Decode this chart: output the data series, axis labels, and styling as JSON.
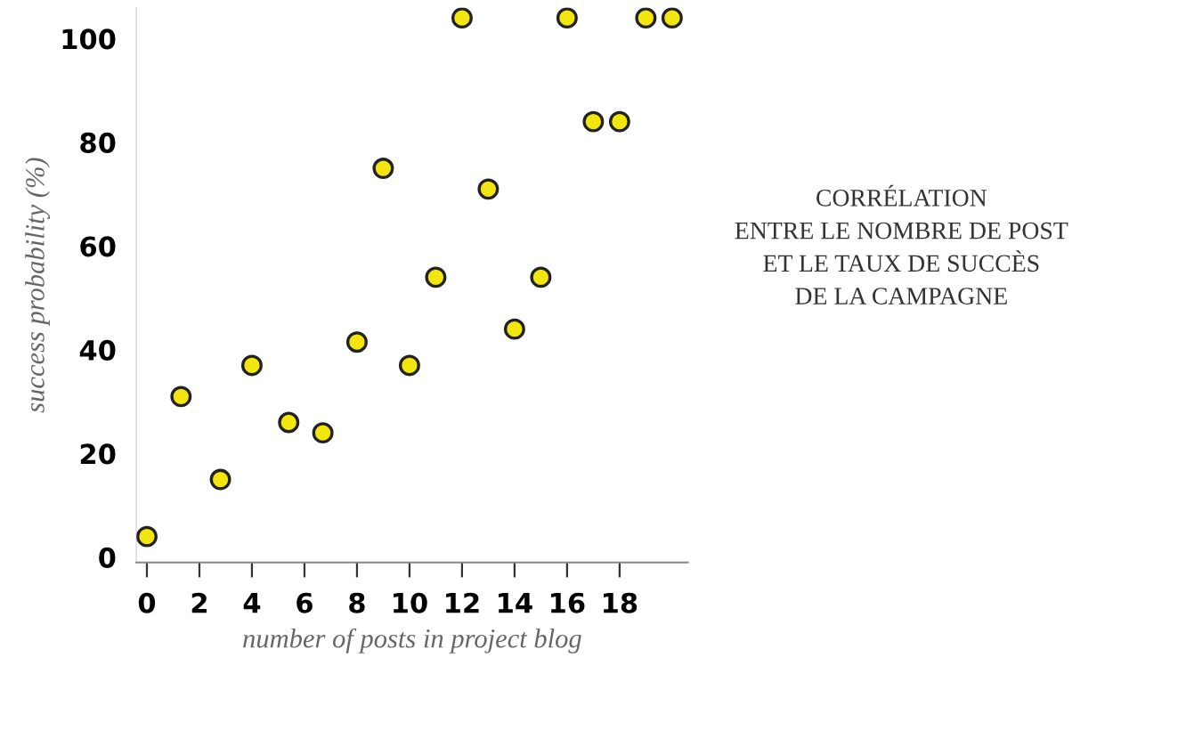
{
  "chart_data": {
    "type": "scatter",
    "title": "CORRÉLATION\nENTRE LE NOMBRE DE POST\nET LE TAUX DE SUCCÈS\nDE LA CAMPAGNE",
    "xlabel": "number of posts in project blog",
    "ylabel": "success probability (%)",
    "x": [
      0,
      1.3,
      2.8,
      4,
      5.4,
      6.7,
      8,
      9,
      10,
      11,
      12,
      13,
      14,
      15,
      16,
      17,
      18,
      19,
      20
    ],
    "series": [
      {
        "color": "#f2e60e",
        "values": [
          4,
          31,
          15,
          37,
          26,
          24,
          41.5,
          75,
          37,
          54,
          104,
          71,
          44,
          54,
          104,
          84,
          84,
          104,
          104
        ]
      }
    ],
    "xlim": [
      -0.4,
      20.6
    ],
    "xticks": [
      0,
      2,
      4,
      6,
      8,
      10,
      12,
      14,
      16,
      18
    ],
    "ylim": [
      -1,
      106
    ],
    "yticks": [
      0,
      20,
      40,
      60,
      80,
      100
    ],
    "grid": false,
    "marker": "circle"
  }
}
